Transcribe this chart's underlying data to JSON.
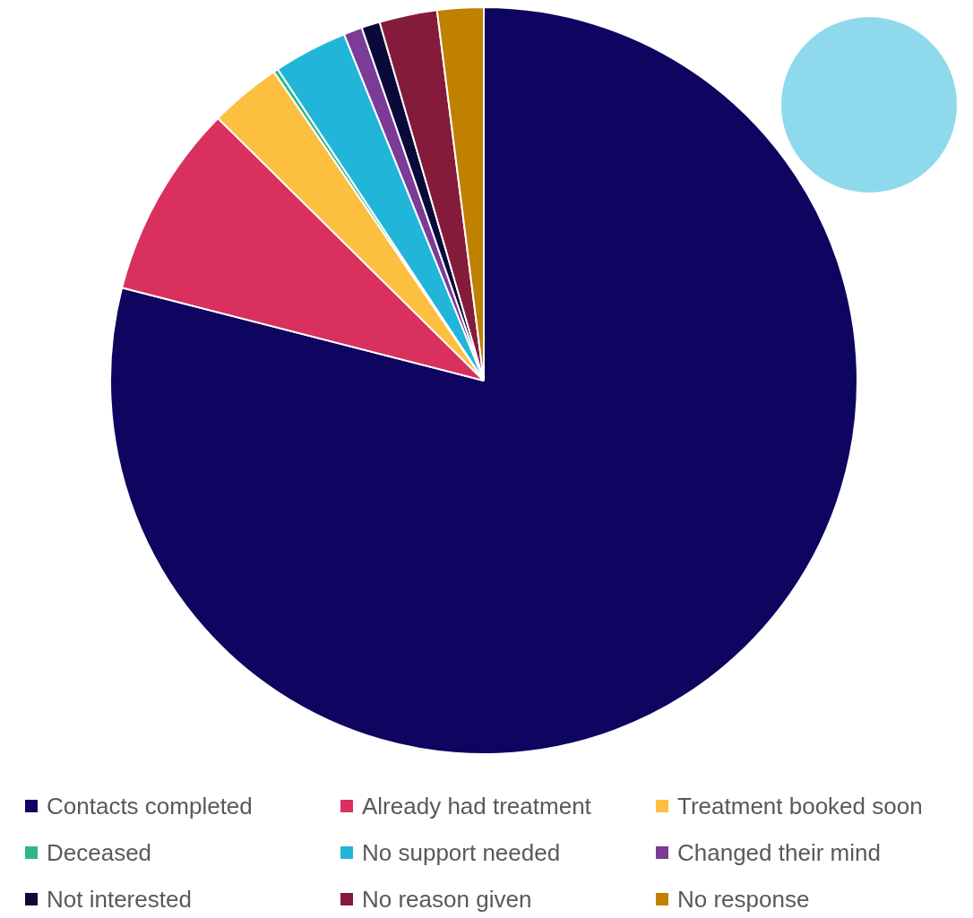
{
  "chart_data": {
    "type": "pie",
    "categories": [
      "Contacts completed",
      "Already had treatment",
      "Treatment booked soon",
      "Deceased",
      "No support needed",
      "Changed their mind",
      "Not interested",
      "No reason given",
      "No response"
    ],
    "values": [
      79.0,
      8.4,
      3.1,
      0.2,
      3.2,
      0.8,
      0.8,
      2.5,
      2.0
    ],
    "colors": [
      "#0e0560",
      "#d9305e",
      "#fdbf3f",
      "#2db88a",
      "#21b6d9",
      "#7b3b96",
      "#0a0a3a",
      "#851b3a",
      "#c08000"
    ],
    "legend": "bottom"
  }
}
